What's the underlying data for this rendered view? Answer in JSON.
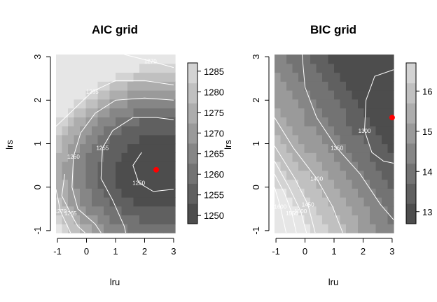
{
  "chart_data": [
    {
      "type": "heatmap",
      "title": "AIC grid",
      "xlabel": "lru",
      "ylabel": "lrs",
      "xlim": [
        -1.05,
        3.05
      ],
      "ylim": [
        -1.05,
        3.05
      ],
      "x_ticks": [
        "-1",
        "0",
        "1",
        "2",
        "3"
      ],
      "y_ticks": [
        "-1",
        "0",
        "1",
        "2",
        "3"
      ],
      "grid": false,
      "colorbar": {
        "min": 1248,
        "max": 1287,
        "ticks": [
          "1250",
          "1255",
          "1260",
          "1265",
          "1270",
          "1275",
          "1280",
          "1285"
        ]
      },
      "contours": [
        {
          "label": "1250",
          "points": [
            [
              1.9,
              0.8
            ],
            [
              1.6,
              0.5
            ],
            [
              1.8,
              0.1
            ],
            [
              2.3,
              -0.1
            ],
            [
              3.0,
              -0.05
            ]
          ]
        },
        {
          "label": "1255",
          "points": [
            [
              3.0,
              1.55
            ],
            [
              2.4,
              1.6
            ],
            [
              1.6,
              1.6
            ],
            [
              0.9,
              1.3
            ],
            [
              0.55,
              0.9
            ],
            [
              0.5,
              0.2
            ],
            [
              0.9,
              -0.3
            ],
            [
              1.3,
              -0.9
            ],
            [
              1.35,
              -1.05
            ]
          ]
        },
        {
          "label": "1260",
          "points": [
            [
              3.0,
              2.0
            ],
            [
              2.0,
              2.05
            ],
            [
              1.0,
              2.0
            ],
            [
              0.3,
              1.7
            ],
            [
              -0.2,
              1.25
            ],
            [
              -0.45,
              0.7
            ],
            [
              -0.5,
              0.0
            ],
            [
              -0.3,
              -0.5
            ],
            [
              0.3,
              -0.85
            ],
            [
              0.5,
              -1.05
            ]
          ]
        },
        {
          "label": "1265",
          "points": [
            [
              3.0,
              2.35
            ],
            [
              2.0,
              2.45
            ],
            [
              1.0,
              2.45
            ],
            [
              0.2,
              2.2
            ],
            [
              -0.5,
              1.75
            ],
            [
              -1.05,
              1.4
            ]
          ]
        },
        {
          "label": "1270",
          "points": [
            [
              3.0,
              2.75
            ],
            [
              2.2,
              2.9
            ],
            [
              1.3,
              3.05
            ]
          ]
        },
        {
          "label": "1265",
          "points": [
            [
              -0.75,
              0.3
            ],
            [
              -0.85,
              -0.2
            ],
            [
              -0.55,
              -0.6
            ],
            [
              -0.3,
              -0.9
            ],
            [
              -0.05,
              -1.05
            ]
          ]
        },
        {
          "label": "1270",
          "points": [
            [
              -1.05,
              -0.05
            ],
            [
              -0.9,
              -0.55
            ],
            [
              -0.55,
              -1.05
            ]
          ]
        }
      ],
      "optimum": {
        "x": 2.4,
        "y": 0.4
      }
    },
    {
      "type": "heatmap",
      "title": "BIC grid",
      "xlabel": "lru",
      "ylabel": "lrs",
      "xlim": [
        -1.05,
        3.05
      ],
      "ylim": [
        -1.05,
        3.05
      ],
      "x_ticks": [
        "-1",
        "0",
        "1",
        "2",
        "3"
      ],
      "y_ticks": [
        "-1",
        "0",
        "1",
        "2",
        "3"
      ],
      "grid": false,
      "colorbar": {
        "min": 12.7,
        "max": 16.7,
        "ticks": [
          "13",
          "14",
          "15",
          "16"
        ]
      },
      "contours": [
        {
          "label": "1300",
          "points": [
            [
              3.05,
              2.7
            ],
            [
              2.4,
              2.55
            ],
            [
              2.1,
              2.0
            ],
            [
              2.05,
              1.3
            ],
            [
              2.3,
              0.8
            ],
            [
              2.7,
              0.6
            ],
            [
              3.05,
              0.55
            ]
          ]
        },
        {
          "label": "1350",
          "points": [
            [
              -0.1,
              3.05
            ],
            [
              0.0,
              2.3
            ],
            [
              0.4,
              1.6
            ],
            [
              1.1,
              0.9
            ],
            [
              1.9,
              0.3
            ],
            [
              2.6,
              -0.4
            ],
            [
              3.05,
              -0.75
            ]
          ]
        },
        {
          "label": "1400",
          "points": [
            [
              -1.05,
              1.6
            ],
            [
              -0.4,
              0.9
            ],
            [
              0.4,
              0.2
            ],
            [
              0.95,
              -0.45
            ],
            [
              1.3,
              -1.05
            ]
          ]
        },
        {
          "label": "1450",
          "points": [
            [
              -1.05,
              0.95
            ],
            [
              -0.35,
              0.2
            ],
            [
              0.1,
              -0.4
            ],
            [
              0.35,
              -1.05
            ]
          ]
        },
        {
          "label": "1500",
          "points": [
            [
              -1.05,
              0.6
            ],
            [
              -0.55,
              0.0
            ],
            [
              -0.15,
              -0.55
            ],
            [
              0.05,
              -1.05
            ]
          ]
        },
        {
          "label": "1550",
          "points": [
            [
              -1.05,
              0.3
            ],
            [
              -0.7,
              -0.15
            ],
            [
              -0.45,
              -0.6
            ],
            [
              -0.3,
              -1.05
            ]
          ]
        },
        {
          "label": "1600",
          "points": [
            [
              -1.05,
              0.0
            ],
            [
              -0.85,
              -0.45
            ],
            [
              -0.65,
              -1.05
            ]
          ]
        }
      ],
      "optimum": {
        "x": 3.0,
        "y": 1.6
      }
    }
  ],
  "colors": {
    "optimum": "#ff0000",
    "contour": "#ffffff",
    "axis": "#000000",
    "dark": "#4d4d4d",
    "light": "#e6e6e6"
  }
}
